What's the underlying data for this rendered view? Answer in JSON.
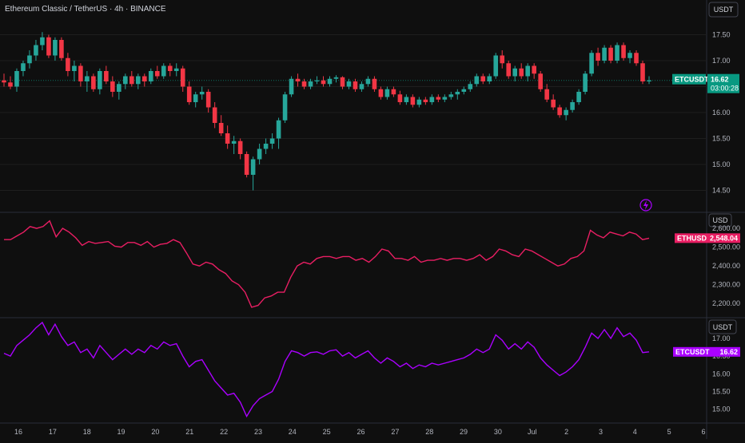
{
  "header": {
    "title": "Ethereum Classic / TetherUS · 4h · BINANCE"
  },
  "colors": {
    "up": "#26a69a",
    "down": "#f23645",
    "eth": "#e91e63",
    "etc": "#aa00ff",
    "price_tag": "#089981"
  },
  "icons": {
    "alert": "lightning-alert-icon"
  },
  "chart_data": [
    {
      "type": "candlestick",
      "title": "Ethereum Classic / TetherUS · 4h · BINANCE",
      "unit": "USDT",
      "x_tick_labels": [
        "16",
        "17",
        "18",
        "19",
        "20",
        "21",
        "22",
        "23",
        "24",
        "25",
        "26",
        "27",
        "28",
        "29",
        "30",
        "Jul",
        "2",
        "3",
        "4",
        "5",
        "6"
      ],
      "y_ticks": [
        "17.50",
        "17.00",
        "16.50",
        "16.00",
        "15.50",
        "15.00",
        "14.50"
      ],
      "ylim": [
        14.2,
        17.8
      ],
      "last_price": {
        "symbol": "ETCUSDT",
        "value": "16.62",
        "countdown": "03:00:28"
      },
      "ohlc": [
        [
          16.62,
          16.75,
          16.5,
          16.58
        ],
        [
          16.58,
          16.7,
          16.45,
          16.5
        ],
        [
          16.5,
          16.85,
          16.4,
          16.8
        ],
        [
          16.8,
          17.0,
          16.7,
          16.95
        ],
        [
          16.95,
          17.2,
          16.85,
          17.1
        ],
        [
          17.1,
          17.4,
          17.0,
          17.3
        ],
        [
          17.3,
          17.55,
          17.2,
          17.45
        ],
        [
          17.45,
          17.5,
          17.05,
          17.1
        ],
        [
          17.1,
          17.45,
          17.0,
          17.4
        ],
        [
          17.4,
          17.45,
          17.0,
          17.05
        ],
        [
          17.05,
          17.15,
          16.7,
          16.8
        ],
        [
          16.8,
          17.0,
          16.6,
          16.9
        ],
        [
          16.9,
          16.95,
          16.5,
          16.6
        ],
        [
          16.6,
          16.8,
          16.4,
          16.7
        ],
        [
          16.7,
          16.75,
          16.4,
          16.45
        ],
        [
          16.45,
          16.85,
          16.35,
          16.8
        ],
        [
          16.8,
          16.9,
          16.55,
          16.6
        ],
        [
          16.6,
          16.7,
          16.3,
          16.4
        ],
        [
          16.4,
          16.6,
          16.25,
          16.55
        ],
        [
          16.55,
          16.75,
          16.45,
          16.7
        ],
        [
          16.7,
          16.8,
          16.5,
          16.55
        ],
        [
          16.55,
          16.75,
          16.45,
          16.7
        ],
        [
          16.7,
          16.75,
          16.5,
          16.6
        ],
        [
          16.6,
          16.85,
          16.55,
          16.8
        ],
        [
          16.8,
          16.9,
          16.65,
          16.7
        ],
        [
          16.7,
          16.95,
          16.65,
          16.9
        ],
        [
          16.9,
          16.95,
          16.7,
          16.8
        ],
        [
          16.8,
          16.95,
          16.7,
          16.85
        ],
        [
          16.85,
          16.9,
          16.4,
          16.5
        ],
        [
          16.5,
          16.6,
          16.15,
          16.2
        ],
        [
          16.2,
          16.4,
          16.1,
          16.35
        ],
        [
          16.35,
          16.5,
          16.25,
          16.4
        ],
        [
          16.4,
          16.45,
          16.0,
          16.1
        ],
        [
          16.1,
          16.2,
          15.7,
          15.8
        ],
        [
          15.8,
          15.95,
          15.55,
          15.6
        ],
        [
          15.6,
          15.75,
          15.3,
          15.4
        ],
        [
          15.4,
          15.55,
          15.2,
          15.45
        ],
        [
          15.45,
          15.5,
          15.1,
          15.2
        ],
        [
          15.2,
          15.25,
          14.75,
          14.8
        ],
        [
          14.8,
          15.15,
          14.5,
          15.1
        ],
        [
          15.1,
          15.4,
          15.0,
          15.3
        ],
        [
          15.3,
          15.5,
          15.2,
          15.4
        ],
        [
          15.4,
          15.6,
          15.3,
          15.5
        ],
        [
          15.5,
          15.9,
          15.3,
          15.85
        ],
        [
          15.85,
          16.4,
          15.8,
          16.35
        ],
        [
          16.35,
          16.7,
          16.3,
          16.65
        ],
        [
          16.65,
          16.75,
          16.5,
          16.6
        ],
        [
          16.6,
          16.65,
          16.45,
          16.5
        ],
        [
          16.5,
          16.65,
          16.45,
          16.6
        ],
        [
          16.6,
          16.7,
          16.55,
          16.62
        ],
        [
          16.62,
          16.7,
          16.5,
          16.55
        ],
        [
          16.55,
          16.7,
          16.5,
          16.65
        ],
        [
          16.65,
          16.72,
          16.58,
          16.68
        ],
        [
          16.68,
          16.7,
          16.45,
          16.5
        ],
        [
          16.5,
          16.65,
          16.45,
          16.6
        ],
        [
          16.6,
          16.65,
          16.4,
          16.45
        ],
        [
          16.45,
          16.6,
          16.4,
          16.55
        ],
        [
          16.55,
          16.7,
          16.5,
          16.65
        ],
        [
          16.65,
          16.7,
          16.4,
          16.45
        ],
        [
          16.45,
          16.5,
          16.25,
          16.3
        ],
        [
          16.3,
          16.5,
          16.25,
          16.45
        ],
        [
          16.45,
          16.5,
          16.3,
          16.35
        ],
        [
          16.35,
          16.42,
          16.15,
          16.2
        ],
        [
          16.2,
          16.35,
          16.15,
          16.3
        ],
        [
          16.3,
          16.35,
          16.1,
          16.15
        ],
        [
          16.15,
          16.3,
          16.1,
          16.25
        ],
        [
          16.25,
          16.3,
          16.15,
          16.2
        ],
        [
          16.2,
          16.35,
          16.15,
          16.3
        ],
        [
          16.3,
          16.35,
          16.2,
          16.25
        ],
        [
          16.25,
          16.35,
          16.2,
          16.3
        ],
        [
          16.3,
          16.4,
          16.25,
          16.35
        ],
        [
          16.35,
          16.45,
          16.25,
          16.4
        ],
        [
          16.4,
          16.5,
          16.35,
          16.45
        ],
        [
          16.45,
          16.6,
          16.4,
          16.55
        ],
        [
          16.55,
          16.75,
          16.5,
          16.7
        ],
        [
          16.7,
          16.75,
          16.55,
          16.6
        ],
        [
          16.6,
          16.75,
          16.55,
          16.7
        ],
        [
          16.7,
          17.15,
          16.65,
          17.1
        ],
        [
          17.1,
          17.2,
          16.85,
          16.95
        ],
        [
          16.95,
          17.0,
          16.65,
          16.7
        ],
        [
          16.7,
          16.9,
          16.6,
          16.85
        ],
        [
          16.85,
          16.95,
          16.65,
          16.7
        ],
        [
          16.7,
          16.95,
          16.6,
          16.9
        ],
        [
          16.9,
          16.95,
          16.65,
          16.75
        ],
        [
          16.75,
          16.8,
          16.4,
          16.45
        ],
        [
          16.45,
          16.55,
          16.2,
          16.25
        ],
        [
          16.25,
          16.35,
          16.05,
          16.1
        ],
        [
          16.1,
          16.15,
          15.9,
          15.95
        ],
        [
          15.95,
          16.1,
          15.85,
          16.05
        ],
        [
          16.05,
          16.25,
          16.0,
          16.2
        ],
        [
          16.2,
          16.45,
          16.15,
          16.4
        ],
        [
          16.4,
          16.8,
          16.35,
          16.75
        ],
        [
          16.75,
          17.2,
          16.7,
          17.15
        ],
        [
          17.15,
          17.25,
          16.9,
          17.0
        ],
        [
          17.0,
          17.3,
          16.95,
          17.25
        ],
        [
          17.25,
          17.3,
          16.95,
          17.0
        ],
        [
          17.0,
          17.35,
          16.95,
          17.3
        ],
        [
          17.3,
          17.35,
          17.0,
          17.05
        ],
        [
          17.05,
          17.2,
          16.95,
          17.15
        ],
        [
          17.15,
          17.2,
          16.9,
          16.95
        ],
        [
          16.95,
          17.0,
          16.55,
          16.6
        ],
        [
          16.6,
          16.7,
          16.55,
          16.62
        ]
      ]
    },
    {
      "type": "line",
      "unit": "USD",
      "y_ticks": [
        "2,600.00",
        "2,500.00",
        "2,400.00",
        "2,300.00",
        "2,200.00"
      ],
      "ylim": [
        2150,
        2660
      ],
      "last_value": {
        "symbol": "ETHUSD",
        "value": "2,548.04"
      },
      "series": [
        {
          "values": [
            2540,
            2540,
            2560,
            2580,
            2610,
            2600,
            2610,
            2640,
            2555,
            2600,
            2580,
            2550,
            2510,
            2530,
            2520,
            2525,
            2530,
            2505,
            2500,
            2525,
            2525,
            2510,
            2530,
            2500,
            2515,
            2520,
            2540,
            2525,
            2470,
            2410,
            2400,
            2420,
            2410,
            2380,
            2360,
            2320,
            2300,
            2260,
            2180,
            2190,
            2230,
            2240,
            2260,
            2260,
            2340,
            2400,
            2420,
            2410,
            2440,
            2450,
            2450,
            2440,
            2450,
            2450,
            2430,
            2440,
            2420,
            2450,
            2490,
            2480,
            2440,
            2440,
            2430,
            2450,
            2420,
            2430,
            2430,
            2440,
            2430,
            2440,
            2440,
            2430,
            2440,
            2460,
            2430,
            2450,
            2490,
            2480,
            2460,
            2450,
            2490,
            2480,
            2460,
            2440,
            2420,
            2400,
            2410,
            2440,
            2450,
            2480,
            2590,
            2565,
            2550,
            2580,
            2570,
            2560,
            2580,
            2570,
            2540,
            2548
          ]
        }
      ]
    },
    {
      "type": "line",
      "unit": "USDT",
      "y_ticks": [
        "17.00",
        "16.50",
        "16.00",
        "15.50",
        "15.00"
      ],
      "ylim": [
        14.7,
        17.45
      ],
      "last_value": {
        "symbol": "ETCUSDT",
        "value": "16.62"
      },
      "series": [
        {
          "values": [
            16.58,
            16.5,
            16.8,
            16.95,
            17.1,
            17.3,
            17.45,
            17.1,
            17.4,
            17.05,
            16.8,
            16.9,
            16.6,
            16.7,
            16.45,
            16.8,
            16.6,
            16.4,
            16.55,
            16.7,
            16.55,
            16.7,
            16.6,
            16.8,
            16.7,
            16.9,
            16.8,
            16.85,
            16.5,
            16.2,
            16.35,
            16.4,
            16.1,
            15.8,
            15.6,
            15.4,
            15.45,
            15.2,
            14.8,
            15.1,
            15.3,
            15.4,
            15.5,
            15.85,
            16.35,
            16.65,
            16.6,
            16.5,
            16.6,
            16.62,
            16.55,
            16.65,
            16.68,
            16.5,
            16.6,
            16.45,
            16.55,
            16.65,
            16.45,
            16.3,
            16.45,
            16.35,
            16.2,
            16.3,
            16.15,
            16.25,
            16.2,
            16.3,
            16.25,
            16.3,
            16.35,
            16.4,
            16.45,
            16.55,
            16.7,
            16.6,
            16.7,
            17.1,
            16.95,
            16.7,
            16.85,
            16.7,
            16.9,
            16.75,
            16.45,
            16.25,
            16.1,
            15.95,
            16.05,
            16.2,
            16.4,
            16.75,
            17.15,
            17.0,
            17.25,
            17.0,
            17.3,
            17.05,
            17.15,
            16.95,
            16.6,
            16.62
          ]
        }
      ]
    }
  ]
}
